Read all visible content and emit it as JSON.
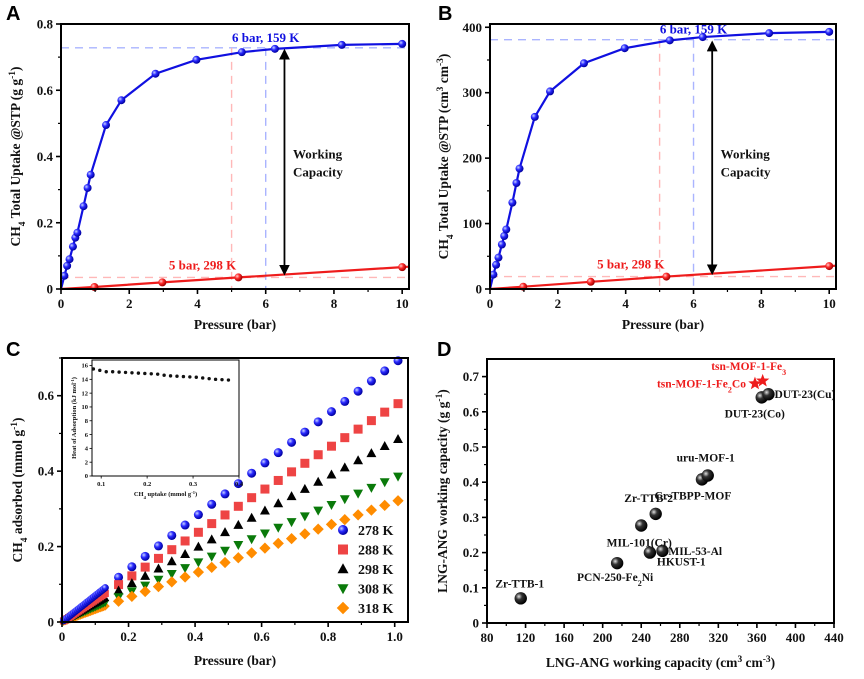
{
  "figure": {
    "panels": [
      "A",
      "B",
      "C",
      "D"
    ]
  },
  "chart_data": [
    {
      "panel": "A",
      "type": "line",
      "title": "",
      "xlabel": "Pressure (bar)",
      "ylabel": "CH4 Total Uptake @STP (g g-1)",
      "ylabel_parts": {
        "pre": "CH",
        "sub": "4",
        "mid": " Total Uptake @STP (g g",
        "sup": "-1",
        "post": ")"
      },
      "xlim": [
        0,
        10.2
      ],
      "ylim": [
        0,
        0.8
      ],
      "xticks": [
        0,
        2,
        4,
        6,
        8,
        10
      ],
      "yticks": [
        0,
        0.2,
        0.4,
        0.6,
        0.8
      ],
      "ytick_labels": [
        "0",
        "0.2",
        "0.4",
        "0.6",
        "0.8"
      ],
      "series": [
        {
          "name": "159 K",
          "color": "#1010e0",
          "x": [
            0,
            0.1,
            0.18,
            0.25,
            0.35,
            0.42,
            0.48,
            0.66,
            0.78,
            0.87,
            1.32,
            1.77,
            2.77,
            3.97,
            5.3,
            6.27,
            8.23,
            10.0
          ],
          "y": [
            0,
            0.04,
            0.07,
            0.09,
            0.128,
            0.155,
            0.17,
            0.25,
            0.305,
            0.345,
            0.495,
            0.57,
            0.65,
            0.692,
            0.715,
            0.725,
            0.737,
            0.74
          ]
        },
        {
          "name": "298 K",
          "color": "#ee1c1c",
          "x": [
            0,
            0.98,
            2.97,
            5.2,
            10.0
          ],
          "y": [
            0,
            0.006,
            0.02,
            0.035,
            0.066
          ]
        }
      ],
      "guides": {
        "blue_h_y": 0.728,
        "blue_v_x": 6,
        "red_h_y": 0.035,
        "red_v_x": 5
      },
      "annotations": {
        "high": "6 bar, 159 K",
        "low": "5 bar, 298 K",
        "working_line1": "Working",
        "working_line2": "Capacity",
        "arrow_x": 6.55,
        "arrow_y_top": 0.728,
        "arrow_y_bottom": 0.038
      }
    },
    {
      "panel": "B",
      "type": "line",
      "title": "",
      "xlabel": "Pressure (bar)",
      "ylabel": "CH4 Total Uptake @STP (cm3 cm-3)",
      "ylabel_parts": {
        "pre": "CH",
        "sub": "4",
        "mid": " Total Uptake @STP (cm",
        "sup": "3",
        "mid2": " cm",
        "sup2": "-3",
        "post": ")"
      },
      "xlim": [
        0,
        10.2
      ],
      "ylim": [
        0,
        405
      ],
      "xticks": [
        0,
        2,
        4,
        6,
        8,
        10
      ],
      "yticks": [
        0,
        100,
        200,
        300,
        400
      ],
      "ytick_labels": [
        "0",
        "100",
        "200",
        "300",
        "400"
      ],
      "series": [
        {
          "name": "159 K",
          "color": "#1010e0",
          "x": [
            0,
            0.1,
            0.18,
            0.25,
            0.35,
            0.42,
            0.48,
            0.66,
            0.78,
            0.87,
            1.32,
            1.77,
            2.77,
            3.97,
            5.3,
            6.27,
            8.23,
            10.0
          ],
          "y": [
            0,
            22,
            37,
            48,
            68,
            81,
            91,
            132,
            162,
            184,
            263,
            302,
            345,
            368,
            380,
            385,
            391,
            393
          ]
        },
        {
          "name": "298 K",
          "color": "#ee1c1c",
          "x": [
            0,
            0.98,
            2.97,
            5.2,
            10.0
          ],
          "y": [
            0,
            3.5,
            11,
            19,
            35
          ]
        }
      ],
      "guides": {
        "blue_h_y": 381,
        "blue_v_x": 6,
        "red_h_y": 19,
        "red_v_x": 5
      },
      "annotations": {
        "high": "6 bar, 159 K",
        "low": "5 bar, 298 K",
        "working_line1": "Working",
        "working_line2": "Capacity",
        "arrow_x": 6.55,
        "arrow_y_top": 381,
        "arrow_y_bottom": 20
      }
    },
    {
      "panel": "C",
      "type": "scatter",
      "title": "",
      "xlabel": "Pressure (bar)",
      "ylabel": "CH4 adsorbed (mmol g-1)",
      "ylabel_parts": {
        "pre": "CH",
        "sub": "4",
        "mid": " adsorbed (mmol g",
        "sup": "-1",
        "post": ")"
      },
      "xlim": [
        0,
        1.04
      ],
      "ylim": [
        0,
        0.7
      ],
      "xticks": [
        0,
        0.2,
        0.4,
        0.6,
        0.8,
        1.0
      ],
      "xtick_labels": [
        "0",
        "0.2",
        "0.4",
        "0.6",
        "0.8",
        "1.0"
      ],
      "yticks": [
        0,
        0.2,
        0.4,
        0.6
      ],
      "ytick_labels": [
        "0",
        "0.2",
        "0.4",
        "0.6"
      ],
      "legend_position": "bottom-right",
      "series": [
        {
          "name": "278 K",
          "marker": "circle",
          "color": "#1a1aee",
          "slope": 0.7
        },
        {
          "name": "288 K",
          "marker": "square",
          "color": "#ee4444",
          "slope": 0.585
        },
        {
          "name": "298 K",
          "marker": "triangle-up",
          "color": "#000000",
          "slope": 0.49
        },
        {
          "name": "308 K",
          "marker": "triangle-down",
          "color": "#0a7a0a",
          "slope": 0.39
        },
        {
          "name": "318 K",
          "marker": "diamond",
          "color": "#ff8c00",
          "slope": 0.325
        }
      ],
      "x_dense_low": [
        0.005,
        0.01,
        0.015,
        0.02,
        0.025,
        0.03,
        0.035,
        0.04,
        0.045,
        0.05,
        0.055,
        0.06,
        0.065,
        0.07,
        0.075,
        0.08,
        0.085,
        0.09,
        0.095,
        0.1,
        0.105,
        0.11,
        0.115,
        0.12,
        0.125,
        0.13
      ],
      "x_points": [
        0.17,
        0.21,
        0.25,
        0.29,
        0.33,
        0.37,
        0.41,
        0.45,
        0.49,
        0.53,
        0.57,
        0.61,
        0.65,
        0.69,
        0.73,
        0.77,
        0.81,
        0.85,
        0.89,
        0.93,
        0.97,
        1.01
      ],
      "inset": {
        "xlabel": "CH4 uptake (mmol g-1)",
        "xlabel_parts": {
          "pre": "CH",
          "sub": "4",
          "mid": " uptake (mmol g",
          "sup": "-1",
          "post": ")"
        },
        "ylabel": "Heat of Adsorption (kJ mol-1)",
        "ylabel_parts": {
          "pre": "Heat of Adsorption (kJ mol",
          "sup": "-1",
          "post": ")"
        },
        "xlim": [
          0.08,
          0.4
        ],
        "ylim": [
          0,
          16.8
        ],
        "xticks": [
          0.1,
          0.2,
          0.3,
          0.4
        ],
        "xtick_labels": [
          "0.1",
          "0.2",
          "0.3",
          "0.4"
        ],
        "yticks": [
          0,
          2,
          4,
          6,
          8,
          10,
          12,
          14,
          16
        ],
        "x": [
          0.083,
          0.097,
          0.111,
          0.125,
          0.139,
          0.153,
          0.167,
          0.181,
          0.195,
          0.209,
          0.223,
          0.237,
          0.251,
          0.265,
          0.279,
          0.293,
          0.307,
          0.321,
          0.335,
          0.349,
          0.363,
          0.377
        ],
        "y": [
          15.5,
          15.3,
          15.1,
          15.1,
          15.05,
          15.0,
          14.95,
          14.9,
          14.85,
          14.8,
          14.75,
          14.6,
          14.5,
          14.45,
          14.4,
          14.35,
          14.3,
          14.2,
          14.1,
          14.0,
          13.95,
          13.9
        ]
      }
    },
    {
      "panel": "D",
      "type": "scatter",
      "title": "",
      "xlabel": "LNG-ANG working capacity (cm3 cm-3)",
      "xlabel_parts": {
        "pre": "LNG-ANG working capacity (cm",
        "sup": "3",
        "mid": " cm",
        "sup2": "-3",
        "post": ")"
      },
      "ylabel": "LNG-ANG working capacity (g g-1)",
      "ylabel_parts": {
        "pre": "LNG-ANG working capacity (g g",
        "sup": "-1",
        "post": ")"
      },
      "xlim": [
        80,
        440
      ],
      "ylim": [
        0,
        0.75
      ],
      "xticks": [
        80,
        120,
        160,
        200,
        240,
        280,
        320,
        360,
        400,
        440
      ],
      "yticks": [
        0,
        0.1,
        0.2,
        0.3,
        0.4,
        0.5,
        0.6,
        0.7
      ],
      "ytick_labels": [
        "0",
        "0.1",
        "0.2",
        "0.3",
        "0.4",
        "0.5",
        "0.6",
        "0.7"
      ],
      "points": [
        {
          "name": "Zr-TTB-1",
          "x": 115,
          "y": 0.07,
          "marker": "sphere",
          "label_pos": "above-left"
        },
        {
          "name": "PCN-250-Fe2Ni",
          "label_main": "PCN-250-Fe",
          "label_sub": "2",
          "label_tail": "Ni",
          "x": 215,
          "y": 0.17,
          "marker": "sphere",
          "label_pos": "below-right-PCN"
        },
        {
          "name": "HKUST-1",
          "x": 249,
          "y": 0.2,
          "marker": "sphere",
          "label_pos": "below-right-HK"
        },
        {
          "name": "MIL-53-Al",
          "x": 262,
          "y": 0.205,
          "marker": "sphere",
          "label_pos": "right"
        },
        {
          "name": "MIL-101(Cr)",
          "x": 240,
          "y": 0.277,
          "marker": "sphere",
          "label_pos": "below"
        },
        {
          "name": "Zr-TTB-2",
          "x": 255,
          "y": 0.31,
          "marker": "sphere",
          "label_pos": "above"
        },
        {
          "name": "Cr-TBPP-MOF",
          "x": 303,
          "y": 0.408,
          "marker": "sphere",
          "label_pos": "below"
        },
        {
          "name": "uru-MOF-1",
          "x": 309,
          "y": 0.419,
          "marker": "sphere",
          "label_pos": "above"
        },
        {
          "name": "DUT-23(Co)",
          "x": 365,
          "y": 0.641,
          "marker": "sphere",
          "label_pos": "below"
        },
        {
          "name": "DUT-23(Cu)",
          "x": 372,
          "y": 0.65,
          "marker": "sphere",
          "label_pos": "right"
        },
        {
          "name": "tsn-MOF-1-Fe2Co",
          "label_main": "tsn-MOF-1-Fe",
          "label_sub": "2",
          "label_tail": "Co",
          "x": 358,
          "y": 0.68,
          "marker": "star",
          "color": "#ee1c1c",
          "label_pos": "left"
        },
        {
          "name": "tsn-MOF-1-Fe3",
          "label_main": "tsn-MOF-1-Fe",
          "label_sub": "3",
          "label_tail": "",
          "x": 366,
          "y": 0.688,
          "marker": "star",
          "color": "#ee1c1c",
          "label_pos": "above"
        }
      ]
    }
  ]
}
